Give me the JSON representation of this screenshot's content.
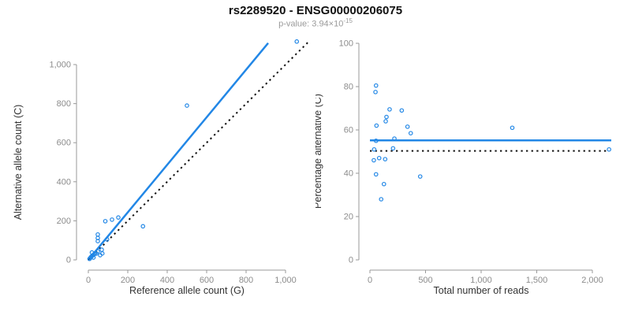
{
  "header": {
    "title": "rs2289520 - ENSG00000206075",
    "pvalue_prefix": "p-value: 3.94×10",
    "pvalue_exponent": "-15"
  },
  "colors": {
    "accent_blue": "#2287E6",
    "dotted_line": "#111111",
    "axis_line": "#999999",
    "tick_label": "#8c8c8c",
    "axis_title": "#333333",
    "title": "#111111",
    "subtitle": "#9a9a9a"
  },
  "chart_data": [
    {
      "type": "scatter",
      "name": "allele-counts-scatter",
      "xlabel": "Reference allele count (G)",
      "ylabel": "Alternative allele count (C)",
      "xlim": [
        0,
        1100
      ],
      "ylim": [
        0,
        1140
      ],
      "grid": false,
      "xticks": [
        0,
        200,
        400,
        600,
        800,
        1000
      ],
      "xtick_labels": [
        "0",
        "200",
        "400",
        "600",
        "800",
        "1,000"
      ],
      "yticks": [
        0,
        200,
        400,
        600,
        800,
        1000
      ],
      "ytick_labels": [
        "0",
        "200",
        "400",
        "600",
        "800",
        "1,000"
      ],
      "points": [
        [
          6,
          5
        ],
        [
          10,
          10
        ],
        [
          14,
          15
        ],
        [
          19,
          20
        ],
        [
          24,
          24
        ],
        [
          29,
          29
        ],
        [
          34,
          34
        ],
        [
          18,
          38
        ],
        [
          40,
          32
        ],
        [
          26,
          12
        ],
        [
          48,
          44
        ],
        [
          60,
          24
        ],
        [
          71,
          33
        ],
        [
          68,
          52
        ],
        [
          48,
          96
        ],
        [
          48,
          112
        ],
        [
          48,
          130
        ],
        [
          95,
          105
        ],
        [
          86,
          198
        ],
        [
          120,
          206
        ],
        [
          152,
          217
        ],
        [
          277,
          172
        ],
        [
          500,
          790
        ],
        [
          1057,
          1118
        ]
      ],
      "lines": [
        {
          "name": "fit-line",
          "style": "solid",
          "x1": 0,
          "y1": 0,
          "x2": 912,
          "y2": 1110
        },
        {
          "name": "identity-line",
          "style": "dotted",
          "x1": 0,
          "y1": 0,
          "x2": 1120,
          "y2": 1120
        }
      ]
    },
    {
      "type": "scatter",
      "name": "percentage-vs-reads-scatter",
      "xlabel": "Total number of reads",
      "ylabel": "Percentage alternative (C)",
      "xlim": [
        0,
        2170
      ],
      "ylim": [
        0,
        100
      ],
      "grid": false,
      "xticks": [
        0,
        500,
        1000,
        1500,
        2000
      ],
      "xtick_labels": [
        "0",
        "500",
        "1,000",
        "1,500",
        "2,000"
      ],
      "yticks": [
        0,
        20,
        40,
        60,
        80,
        100
      ],
      "ytick_labels": [
        "0",
        "20",
        "40",
        "60",
        "80",
        "100"
      ],
      "points": [
        [
          55,
          80.5
        ],
        [
          50,
          77.5
        ],
        [
          177,
          69.5
        ],
        [
          286,
          69
        ],
        [
          149,
          66
        ],
        [
          142,
          64
        ],
        [
          59,
          62
        ],
        [
          338,
          61.5
        ],
        [
          367,
          58.5
        ],
        [
          220,
          56
        ],
        [
          55,
          55
        ],
        [
          38,
          51
        ],
        [
          208,
          51.5
        ],
        [
          35,
          46
        ],
        [
          83,
          47
        ],
        [
          137,
          46.5
        ],
        [
          55,
          39.5
        ],
        [
          126,
          35
        ],
        [
          101,
          28
        ],
        [
          452,
          38.5
        ],
        [
          1280,
          61
        ],
        [
          2150,
          51
        ]
      ],
      "lines": [
        {
          "name": "mean-line",
          "style": "solid",
          "x1": 0,
          "y1": 55.2,
          "x2": 2170,
          "y2": 55.2
        },
        {
          "name": "expected-line",
          "style": "dotted",
          "x1": 0,
          "y1": 50.3,
          "x2": 2140,
          "y2": 50.3
        }
      ]
    }
  ]
}
